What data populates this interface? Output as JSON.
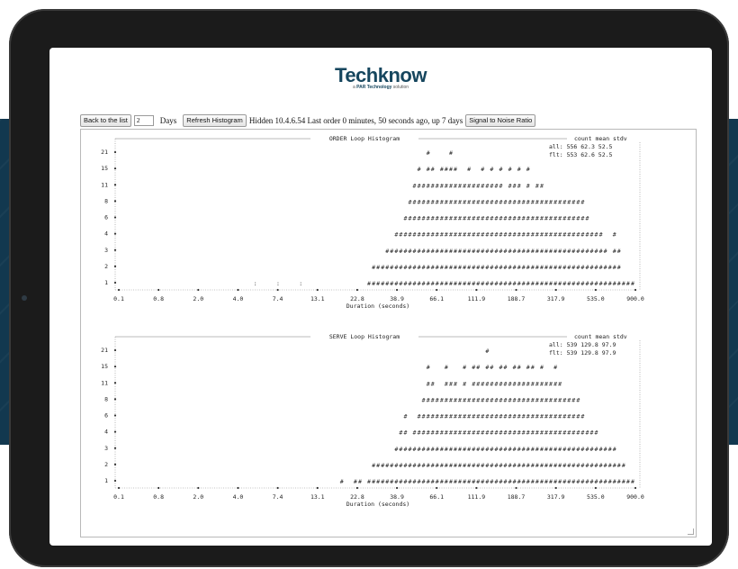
{
  "logo": {
    "name": "Techknow",
    "tagline_prefix": "a",
    "tagline_brand": "PAR Technology",
    "tagline_suffix": "solution"
  },
  "controls": {
    "back_label": "Back to the list",
    "days_value": "2",
    "days_label": "Days",
    "refresh_label": "Refresh Histogram",
    "status_text": "Hidden 10.4.6.54 Last order 0 minutes, 50 seconds ago, up 7 days",
    "snr_label": "Signal to Noise Ratio"
  },
  "chart_data": [
    {
      "type": "bar",
      "title": "ORDER Loop Histogram",
      "xlabel": "Duration (seconds)",
      "x_ticks": [
        "0.1",
        "0.8",
        "2.0",
        "4.0",
        "7.4",
        "13.1",
        "22.8",
        "38.9",
        "66.1",
        "111.9",
        "188.7",
        "317.9",
        "535.0",
        "900.0"
      ],
      "y_ticks": [
        "21",
        "15",
        "11",
        "8",
        "6",
        "4",
        "3",
        "2",
        "1"
      ],
      "stats_header": [
        "count",
        "mean",
        "stdv"
      ],
      "stats": [
        {
          "label": "all:",
          "count": "556",
          "mean": "62.3",
          "stdv": "52.5"
        },
        {
          "label": "flt:",
          "count": "553",
          "mean": "62.6",
          "stdv": "52.5"
        }
      ],
      "values": [
        0,
        0,
        0,
        0,
        0,
        0,
        0,
        0,
        0,
        0,
        0,
        0,
        0,
        0,
        0,
        1,
        0,
        0,
        0,
        0,
        1,
        0,
        0,
        0,
        0,
        1,
        0,
        0,
        0,
        0,
        0,
        0,
        0,
        0,
        0,
        0,
        0,
        0,
        0,
        0,
        1,
        2,
        2,
        2,
        3,
        3,
        4,
        5,
        6,
        8,
        11,
        15,
        14,
        21,
        15,
        11,
        15,
        16,
        21,
        15,
        14,
        11,
        15,
        11,
        11,
        15,
        11,
        15,
        11,
        15,
        8,
        15,
        11,
        15,
        8,
        15,
        8,
        11,
        11,
        8,
        8,
        8,
        8,
        8,
        8,
        8,
        8,
        8,
        6,
        4,
        4,
        4,
        3,
        2,
        4,
        3,
        1,
        1,
        1
      ]
    },
    {
      "type": "bar",
      "title": "SERVE Loop Histogram",
      "xlabel": "Duration (seconds)",
      "x_ticks": [
        "0.1",
        "0.8",
        "2.0",
        "4.0",
        "7.4",
        "13.1",
        "22.8",
        "38.9",
        "66.1",
        "111.9",
        "188.7",
        "317.9",
        "535.0",
        "900.0"
      ],
      "y_ticks": [
        "21",
        "15",
        "11",
        "8",
        "6",
        "4",
        "3",
        "2",
        "1"
      ],
      "stats_header": [
        "count",
        "mean",
        "stdv"
      ],
      "stats": [
        {
          "label": "all:",
          "count": "539",
          "mean": "129.8",
          "stdv": "97.9"
        },
        {
          "label": "flt:",
          "count": "539",
          "mean": "129.8",
          "stdv": "97.9"
        }
      ],
      "values": [
        0,
        0,
        0,
        0,
        0,
        0,
        0,
        0,
        0,
        0,
        0,
        0,
        0,
        0,
        0,
        0,
        0,
        0,
        0,
        0,
        0,
        0,
        0,
        0,
        0,
        0,
        0,
        0,
        0,
        0,
        0,
        0,
        0,
        0,
        1,
        0,
        0,
        1,
        1,
        0,
        1,
        2,
        2,
        2,
        2,
        2,
        3,
        4,
        6,
        3,
        4,
        6,
        8,
        15,
        11,
        8,
        8,
        15,
        11,
        11,
        8,
        15,
        8,
        15,
        18,
        11,
        21,
        15,
        11,
        15,
        18,
        11,
        15,
        15,
        11,
        15,
        18,
        11,
        15,
        11,
        11,
        15,
        11,
        8,
        8,
        8,
        8,
        6,
        4,
        4,
        4,
        3,
        3,
        3,
        3,
        2,
        2,
        1,
        1
      ]
    }
  ]
}
